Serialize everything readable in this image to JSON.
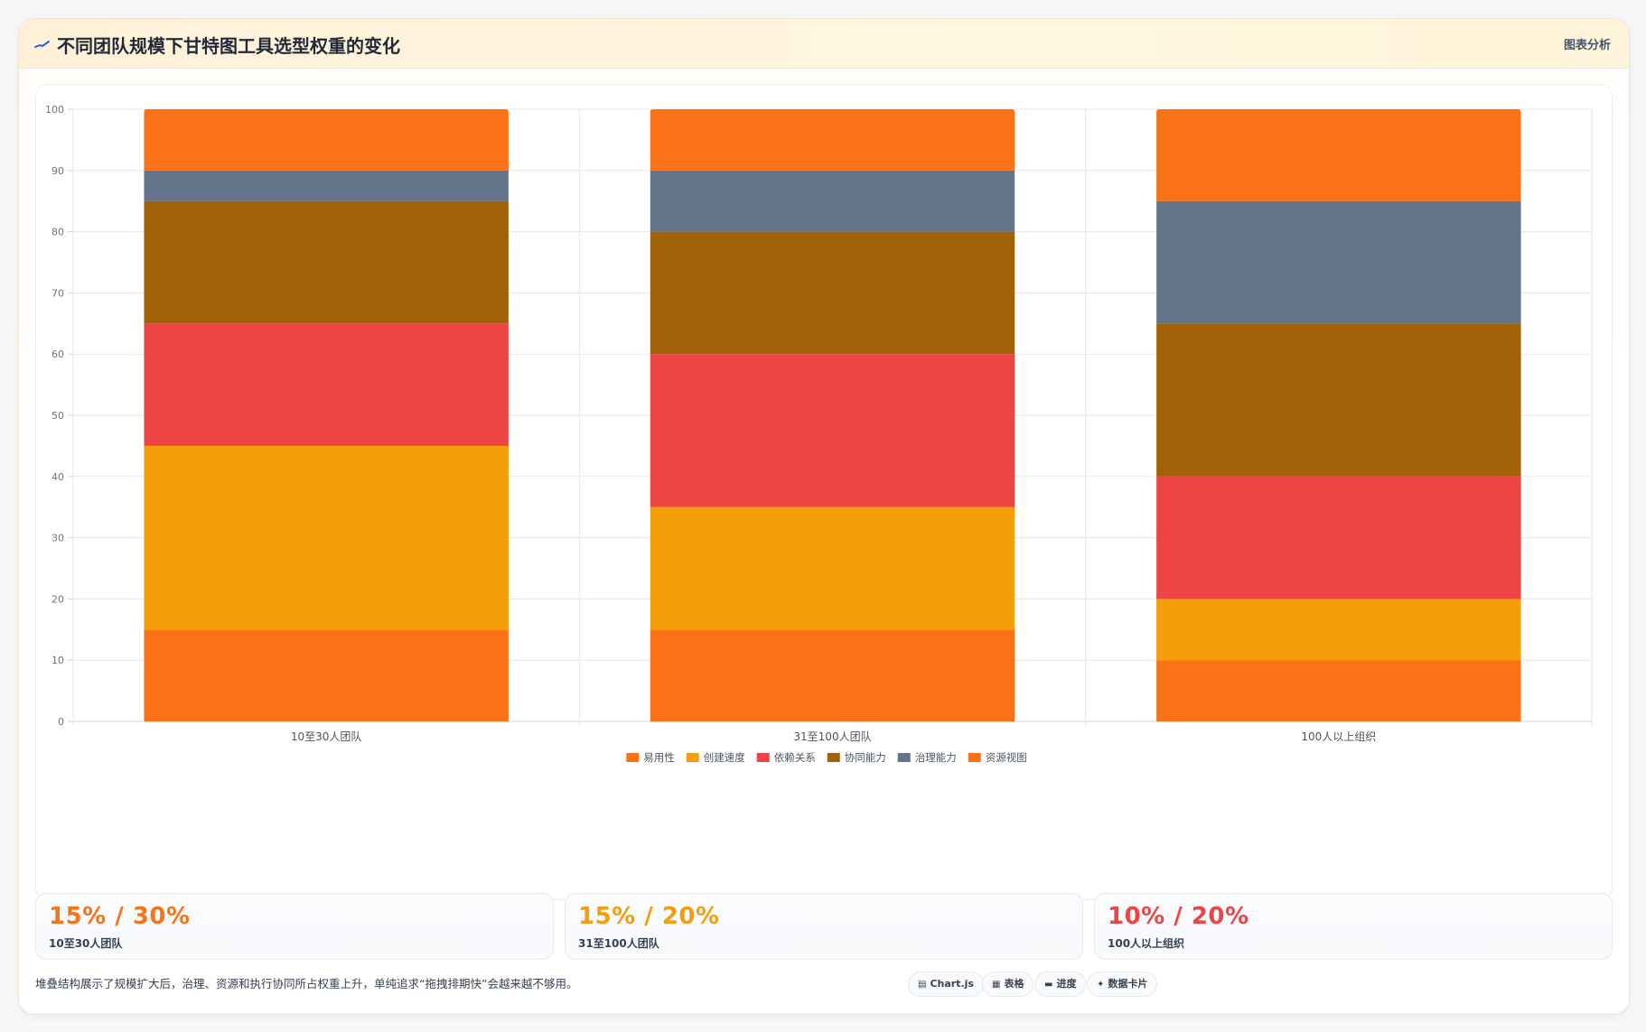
{
  "header": {
    "title": "不同团队规模下甘特图工具选型权重的变化",
    "tag": "图表分析"
  },
  "chart_data": {
    "type": "bar",
    "stacked": true,
    "categories": [
      "10至30人团队",
      "31至100人团队",
      "100人以上组织"
    ],
    "series": [
      {
        "name": "易用性",
        "color": "#f97316",
        "values": [
          15,
          15,
          10
        ]
      },
      {
        "name": "创建速度",
        "color": "#f59e0b",
        "values": [
          30,
          20,
          10
        ]
      },
      {
        "name": "依赖关系",
        "color": "#ef4444",
        "values": [
          20,
          25,
          20
        ]
      },
      {
        "name": "协同能力",
        "color": "#a16207",
        "values": [
          20,
          20,
          25
        ]
      },
      {
        "name": "治理能力",
        "color": "#64748b",
        "values": [
          5,
          10,
          20
        ]
      },
      {
        "name": "资源视图",
        "color": "#f97316",
        "values": [
          10,
          10,
          15
        ]
      }
    ],
    "ylim": [
      0,
      100
    ],
    "yticks": [
      0,
      10,
      20,
      30,
      40,
      50,
      60,
      70,
      80,
      90,
      100
    ],
    "grid": true,
    "legend": "bottom"
  },
  "stats": [
    {
      "value": "15% / 30%",
      "label": "10至30人团队",
      "color": "#f97316"
    },
    {
      "value": "15% / 20%",
      "label": "31至100人团队",
      "color": "#f59e0b"
    },
    {
      "value": "10% / 20%",
      "label": "100人以上组织",
      "color": "#ef4444"
    }
  ],
  "footer": {
    "note": "堆叠结构展示了规模扩大后，治理、资源和执行协同所占权重上升，单纯追求“拖拽排期快”会越来越不够用。",
    "pills": [
      {
        "label": "Chart.js",
        "icon": "chart-icon"
      },
      {
        "label": "表格",
        "icon": "table-icon"
      },
      {
        "label": "进度",
        "icon": "progress-icon"
      },
      {
        "label": "数据卡片",
        "icon": "card-icon"
      }
    ]
  }
}
